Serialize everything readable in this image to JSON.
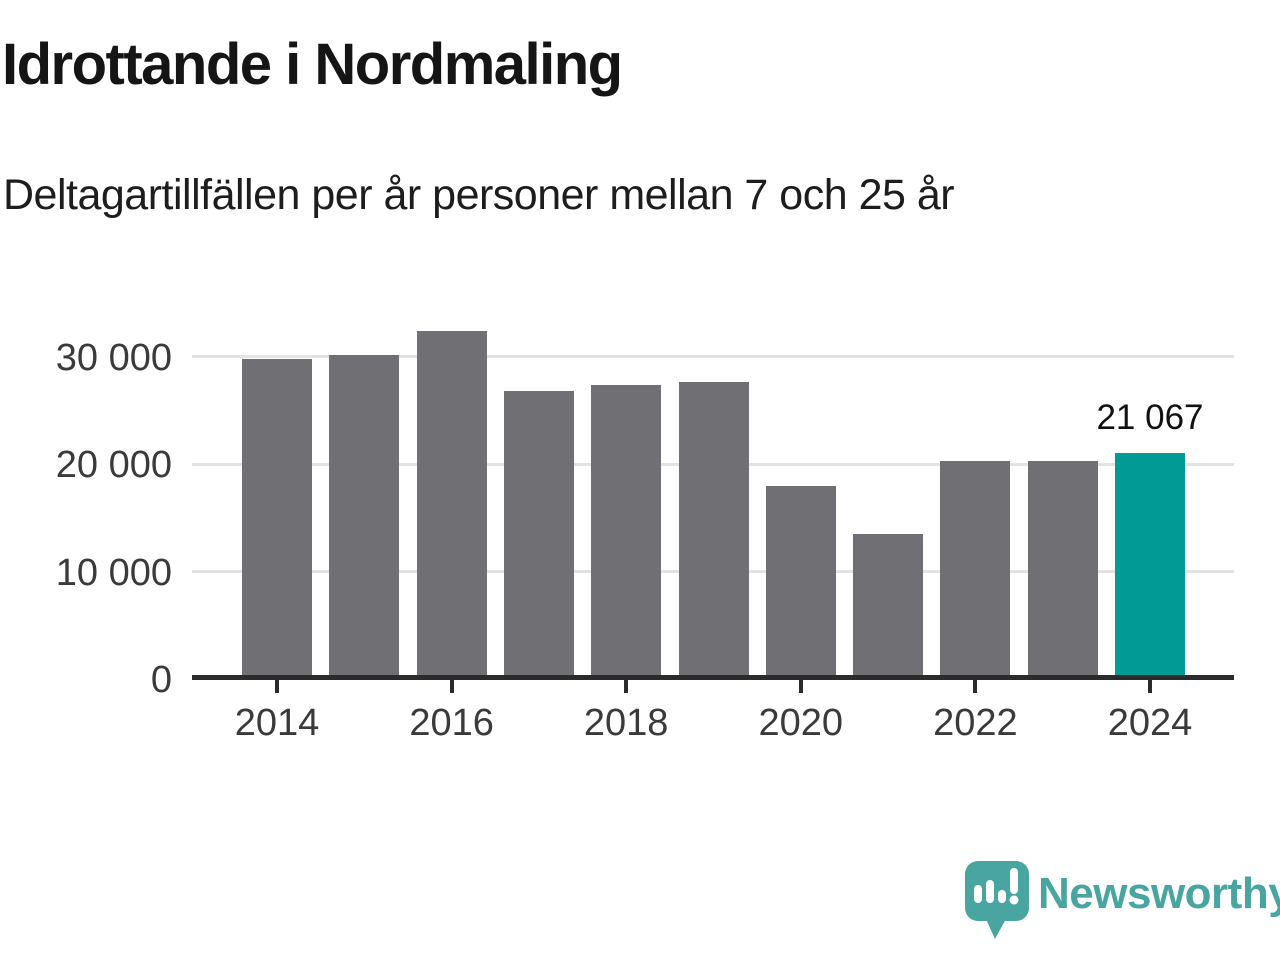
{
  "header": {
    "title": "Idrottande i Nordmaling",
    "subtitle": "Deltagartillfällen per år personer mellan 7 och 25 år"
  },
  "chart_data": {
    "type": "bar",
    "title": "Idrottande i Nordmaling",
    "subtitle": "Deltagartillfällen per år personer mellan 7 och 25 år",
    "categories": [
      "2014",
      "2015",
      "2016",
      "2017",
      "2018",
      "2019",
      "2020",
      "2021",
      "2022",
      "2023",
      "2024"
    ],
    "values": [
      29800,
      30100,
      32400,
      26800,
      27400,
      27600,
      18000,
      13500,
      20300,
      20300,
      21067
    ],
    "highlight": {
      "index": 10,
      "category": "2024",
      "value": 21067,
      "label": "21 067"
    },
    "yticks": [
      {
        "value": 0,
        "label": "0"
      },
      {
        "value": 10000,
        "label": "10 000"
      },
      {
        "value": 20000,
        "label": "20 000"
      },
      {
        "value": 30000,
        "label": "30 000"
      }
    ],
    "xticks": [
      "2014",
      "2016",
      "2018",
      "2020",
      "2022",
      "2024"
    ],
    "ylim": [
      0,
      33500
    ],
    "grid": "horizontal",
    "legend": "none",
    "colors": {
      "bar": "#6f6f74",
      "highlight": "#009b95",
      "grid": "#e3e3e3",
      "axis": "#2b2b2b",
      "tick_text": "#3a3a3a",
      "annotation_text": "#111111"
    }
  },
  "brand": {
    "name": "Newsworthy",
    "color": "#48a5a0",
    "icon": "newsworthy-speech-bubble-chart-icon"
  }
}
